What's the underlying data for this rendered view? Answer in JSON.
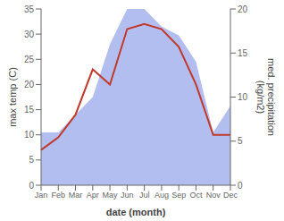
{
  "chart_data": {
    "type": "line",
    "x_label": "date (month)",
    "y_label": "max temp (C)",
    "y2_label": "med. precipitation\n(kg/m2)",
    "categories": [
      "Jan",
      "Feb",
      "Mar",
      "Apr",
      "May",
      "Jun",
      "Jul",
      "Aug",
      "Sep",
      "Oct",
      "Nov",
      "Dec"
    ],
    "series": [
      {
        "type": "area",
        "axis": "y2",
        "color": "#b3bef0",
        "values": [
          6,
          6,
          8,
          10,
          16,
          20,
          20,
          18,
          17,
          14,
          6,
          9
        ]
      },
      {
        "type": "line",
        "axis": "y",
        "color": "#c0392b",
        "values": [
          7,
          9.5,
          14,
          23,
          20,
          31,
          32,
          31,
          27.5,
          20,
          10,
          10
        ]
      }
    ],
    "ylim": [
      0,
      35
    ],
    "yticks": [
      0,
      5,
      10,
      15,
      20,
      25,
      30,
      35
    ],
    "y2lim": [
      0,
      20
    ],
    "y2ticks": [
      0,
      5,
      10,
      15,
      20
    ],
    "grid": false
  }
}
